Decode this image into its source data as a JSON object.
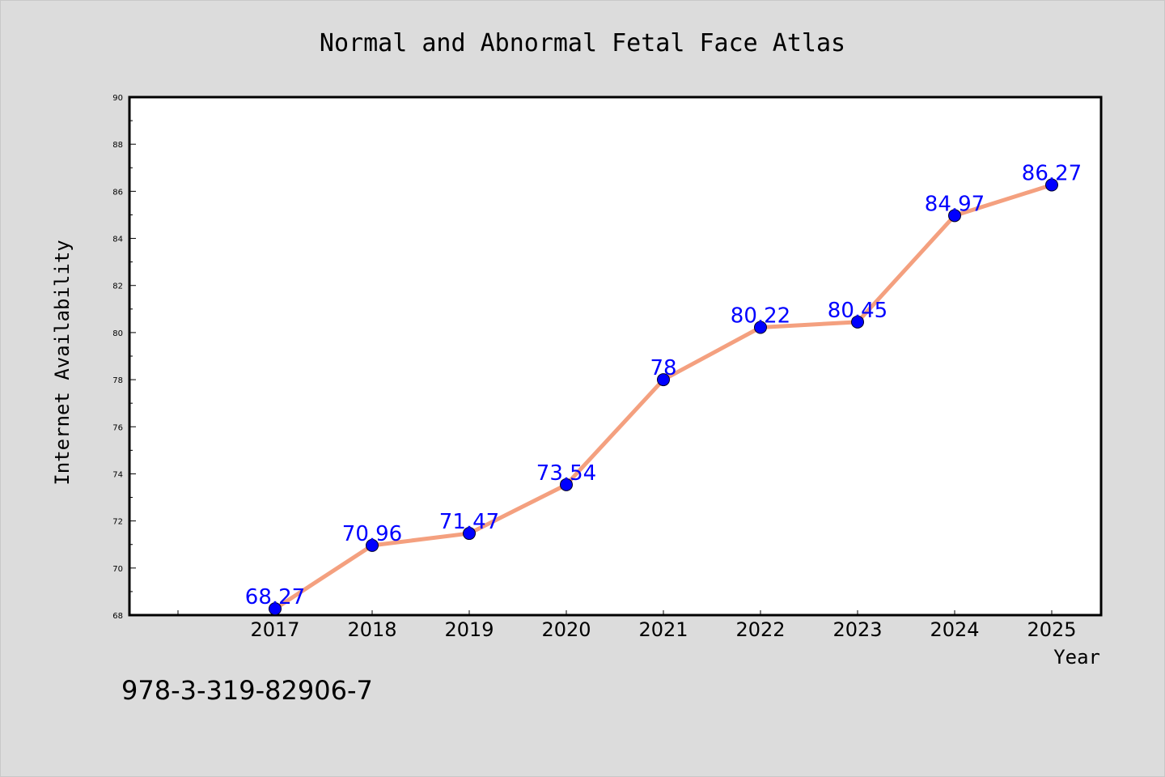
{
  "chart_data": {
    "type": "line",
    "title": "Normal and Abnormal Fetal Face Atlas",
    "xlabel": "Year",
    "ylabel": "Internet Availability",
    "categories": [
      "2017",
      "2018",
      "2019",
      "2020",
      "2021",
      "2022",
      "2023",
      "2024",
      "2025"
    ],
    "series": [
      {
        "values": [
          68.27,
          70.96,
          71.47,
          73.54,
          78,
          80.22,
          80.45,
          84.97,
          86.27
        ],
        "labels": [
          "68.27",
          "70.96",
          "71.47",
          "73.54",
          "78",
          "80.22",
          "80.45",
          "84.97",
          "86.27"
        ],
        "line_color": "#f4a07f",
        "marker_color": "#0000ff"
      }
    ],
    "ylim": [
      68,
      90
    ],
    "yticks": [
      68,
      70,
      72,
      74,
      76,
      78,
      80,
      82,
      84,
      86,
      88,
      90
    ],
    "ytick_labels": [
      "68",
      "70",
      "72",
      "74",
      "76",
      "78",
      "80",
      "82",
      "84",
      "86",
      "88",
      "90"
    ],
    "grid": false,
    "legend": "none"
  },
  "footer": {
    "isbn": "978-3-319-82906-7"
  },
  "colors": {
    "background": "#dcdcdc",
    "plot_background": "#ffffff",
    "line": "#f4a07f",
    "marker": "#0000ff",
    "data_label": "#0000ff"
  }
}
